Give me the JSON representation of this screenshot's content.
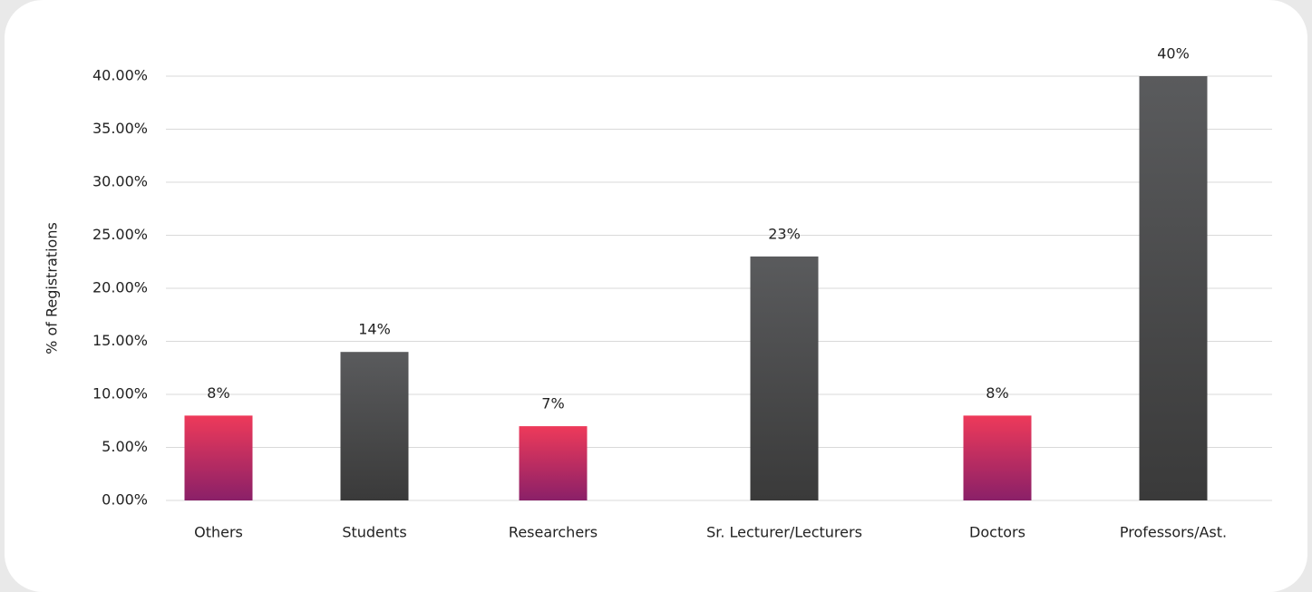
{
  "chart_data": {
    "type": "bar",
    "y_label": "% of Registrations",
    "categories": [
      "Others",
      "Students",
      "Researchers",
      "Sr. Lecturer/Lecturers",
      "Doctors",
      "Professors/Ast."
    ],
    "values": [
      8,
      14,
      7,
      23,
      8,
      40
    ],
    "value_labels": [
      "8%",
      "14%",
      "7%",
      "23%",
      "8%",
      "40%"
    ],
    "colors": [
      [
        "#ee3a5a",
        "#8a2068"
      ],
      [
        "#5a5b5d",
        "#3a3a3a"
      ],
      [
        "#ee3a5a",
        "#8a2068"
      ],
      [
        "#5a5b5d",
        "#3a3a3a"
      ],
      [
        "#ee3a5a",
        "#8a2068"
      ],
      [
        "#5a5b5d",
        "#3a3a3a"
      ]
    ],
    "ylim": [
      0,
      40
    ],
    "yticks": [
      {
        "value": 0,
        "label": "0.00%"
      },
      {
        "value": 5,
        "label": "5.00%"
      },
      {
        "value": 10,
        "label": "10.00%"
      },
      {
        "value": 15,
        "label": "15.00%"
      },
      {
        "value": 20,
        "label": "20.00%"
      },
      {
        "value": 25,
        "label": "25.00%"
      },
      {
        "value": 30,
        "label": "30.00%"
      },
      {
        "value": 35,
        "label": "35.00%"
      },
      {
        "value": 40,
        "label": "40.00%"
      }
    ],
    "grid": true
  }
}
